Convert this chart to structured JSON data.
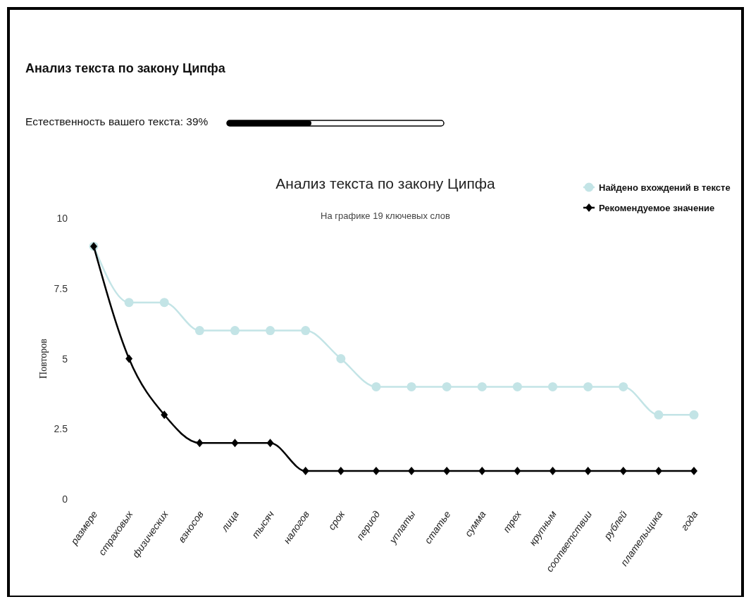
{
  "chart_data": {
    "type": "line",
    "title": "Анализ текста по закону Ципфа",
    "subtitle": "На графике 19 ключевых слов",
    "ylabel": "Повторов",
    "annotations": [
      "Анализ текста по закону Ципфа",
      "Естественность вашего текста: 39%"
    ],
    "categories": [
      "размере",
      "страховых",
      "физических",
      "взносов",
      "лица",
      "тысяч",
      "налогов",
      "срок",
      "период",
      "уплаты",
      "статье",
      "сумма",
      "трех",
      "крупным",
      "соответствии",
      "рублей",
      "плательщика",
      "года"
    ],
    "series": [
      {
        "name": "Найдено вхождений в тексте",
        "color": "#c3e4e6",
        "marker": "circle",
        "values": [
          9,
          7,
          7,
          6,
          6,
          6,
          6,
          5,
          4,
          4,
          4,
          4,
          4,
          4,
          4,
          4,
          3,
          3
        ]
      },
      {
        "name": "Рекомендуемое значение",
        "color": "#000000",
        "marker": "diamond",
        "values": [
          9,
          5,
          3,
          2,
          2,
          2,
          1,
          1,
          1,
          1,
          1,
          1,
          1,
          1,
          1,
          1,
          1,
          1
        ]
      }
    ],
    "ylim": [
      0,
      10
    ],
    "yticks": [
      0,
      2.5,
      5,
      7.5,
      10
    ],
    "grid": false,
    "legend": "top right"
  }
}
